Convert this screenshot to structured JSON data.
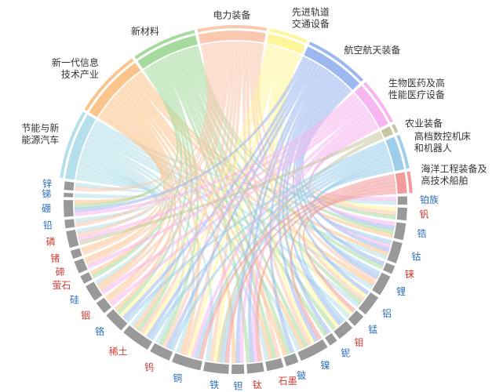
{
  "chart_data": {
    "type": "chord",
    "material_arc_color": "#999999",
    "sectors": [
      {
        "label": [
          "节能与新",
          "能源汽车"
        ],
        "color": "#b5e0ea",
        "links": [
          "铂族",
          "锂",
          "钴",
          "镍",
          "石墨",
          "锰",
          "铝",
          "稀土",
          "铜",
          "硅",
          "磷",
          "铅",
          "锑",
          "锌",
          "铁",
          "钨"
        ]
      },
      {
        "label": [
          "新一代信息",
          "技术产业"
        ],
        "color": "#fbc48c",
        "links": [
          "铟",
          "锗",
          "碲",
          "硅",
          "钽",
          "铜",
          "稀土",
          "萤石",
          "硼",
          "铍",
          "锂",
          "钴",
          "石墨",
          "铬",
          "锆",
          "镍"
        ]
      },
      {
        "label": [
          "新材料"
        ],
        "color": "#a6da9e",
        "links": [
          "钒",
          "锆",
          "铌",
          "钼",
          "钛",
          "钨",
          "稀土",
          "石墨",
          "硼",
          "萤石",
          "铬",
          "铍",
          "镍",
          "铼",
          "铝"
        ]
      },
      {
        "label": [
          "电力装备"
        ],
        "color": "#f9c8ae",
        "links": [
          "铜",
          "铝",
          "硅",
          "稀土",
          "碲",
          "铟",
          "锗",
          "钒",
          "锂",
          "铁",
          "铅",
          "锌",
          "石墨",
          "钨",
          "镍",
          "磷"
        ]
      },
      {
        "label": [
          "先进轨道",
          "交通设备"
        ],
        "color": "#fff59a",
        "links": [
          "铁",
          "铜",
          "铝",
          "稀土",
          "钒",
          "锰",
          "铬",
          "钼",
          "镍"
        ]
      },
      {
        "label": [
          "航空航天装备"
        ],
        "color": "#9cb8ef",
        "links": [
          "钛",
          "铼",
          "铍",
          "铌",
          "钽",
          "钴",
          "镍",
          "铝",
          "稀土",
          "锆",
          "钨",
          "钼",
          "锂",
          "铬",
          "硼"
        ]
      },
      {
        "label": [
          "生物医药及高",
          "性能医疗设备"
        ],
        "color": "#f8b6f0",
        "links": [
          "钛",
          "钽",
          "铂族",
          "锆",
          "钴",
          "碲",
          "硼",
          "磷",
          "铜",
          "硅",
          "铟"
        ]
      },
      {
        "label": [
          "农业装备"
        ],
        "color": "#c6c6a0",
        "links": [
          "磷",
          "铁"
        ]
      },
      {
        "label": [
          "高档数控机床",
          "和机器人"
        ],
        "color": "#9dcfec",
        "links": [
          "钨",
          "钴",
          "稀土",
          "钼",
          "铁",
          "铬",
          "铜",
          "锂"
        ]
      },
      {
        "label": [
          "海洋工程装备及",
          "高技术船舶"
        ],
        "color": "#f39a9a",
        "links": [
          "钛",
          "镍",
          "铜",
          "铁",
          "锰"
        ]
      }
    ],
    "materials": [
      {
        "name": "铂族",
        "color": "#2a6fbf"
      },
      {
        "name": "钒",
        "color": "#d33a32"
      },
      {
        "name": "锆",
        "color": "#2a6fbf"
      },
      {
        "name": "钴",
        "color": "#2a6fbf"
      },
      {
        "name": "铼",
        "color": "#d33a32"
      },
      {
        "name": "锂",
        "color": "#2a6fbf"
      },
      {
        "name": "铝",
        "color": "#2a6fbf"
      },
      {
        "name": "锰",
        "color": "#2a6fbf"
      },
      {
        "name": "钼",
        "color": "#d33a32"
      },
      {
        "name": "铌",
        "color": "#2a6fbf"
      },
      {
        "name": "镍",
        "color": "#2a6fbf"
      },
      {
        "name": "铍",
        "color": "#2a6fbf"
      },
      {
        "name": "石墨",
        "color": "#d33a32"
      },
      {
        "name": "钛",
        "color": "#d33a32"
      },
      {
        "name": "钽",
        "color": "#2a6fbf"
      },
      {
        "name": "铁",
        "color": "#2a6fbf"
      },
      {
        "name": "铜",
        "color": "#2a6fbf"
      },
      {
        "name": "钨",
        "color": "#d33a32"
      },
      {
        "name": "稀土",
        "color": "#d33a32"
      },
      {
        "name": "铬",
        "color": "#2a6fbf"
      },
      {
        "name": "铟",
        "color": "#d33a32"
      },
      {
        "name": "硅",
        "color": "#2a6fbf"
      },
      {
        "name": "萤石",
        "color": "#d33a32"
      },
      {
        "name": "碲",
        "color": "#d33a32"
      },
      {
        "name": "锗",
        "color": "#d33a32"
      },
      {
        "name": "磷",
        "color": "#d33a32"
      },
      {
        "name": "铅",
        "color": "#2a6fbf"
      },
      {
        "name": "硼",
        "color": "#2a6fbf"
      },
      {
        "name": "锑",
        "color": "#2a6fbf"
      },
      {
        "name": "锌",
        "color": "#2a6fbf"
      }
    ]
  }
}
